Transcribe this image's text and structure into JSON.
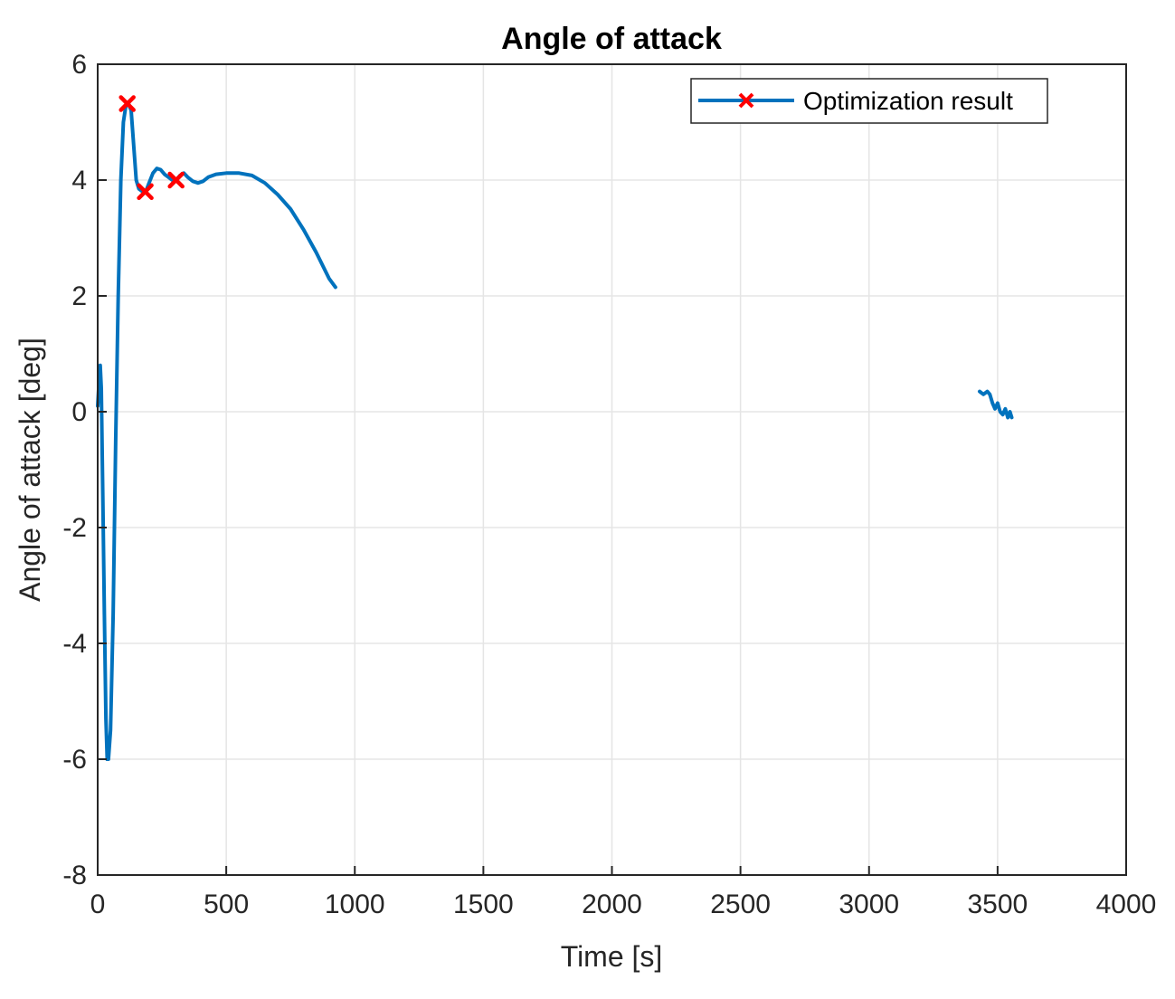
{
  "chart_data": {
    "type": "line",
    "title": "Angle of attack",
    "xlabel": "Time [s]",
    "ylabel": "Angle of attack [deg]",
    "xlim": [
      0,
      4000
    ],
    "ylim": [
      -8,
      6
    ],
    "xticks": [
      0,
      500,
      1000,
      1500,
      2000,
      2500,
      3000,
      3500,
      4000
    ],
    "yticks": [
      -8,
      -6,
      -4,
      -2,
      0,
      2,
      4,
      6
    ],
    "xtick_labels": [
      "0",
      "500",
      "1000",
      "1500",
      "2000",
      "2500",
      "3000",
      "3500",
      "4000"
    ],
    "ytick_labels": [
      "-8",
      "-6",
      "-4",
      "-2",
      "0",
      "2",
      "4",
      "6"
    ],
    "grid": true,
    "legend_position": "top-right",
    "colors": {
      "line": "#0072BD",
      "marker": "#FF0000",
      "grid": "#E5E5E5",
      "axes": "#262626"
    },
    "series": [
      {
        "name": "Optimization result",
        "segments": [
          [
            [
              0,
              0.1
            ],
            [
              5,
              0.5
            ],
            [
              10,
              0.8
            ],
            [
              14,
              0.4
            ],
            [
              20,
              -1.5
            ],
            [
              26,
              -3.5
            ],
            [
              32,
              -5.3
            ],
            [
              37,
              -6.0
            ],
            [
              42,
              -6.0
            ],
            [
              50,
              -5.5
            ],
            [
              60,
              -3.5
            ],
            [
              70,
              -0.5
            ],
            [
              80,
              2.0
            ],
            [
              90,
              4.0
            ],
            [
              100,
              5.0
            ],
            [
              110,
              5.3
            ],
            [
              120,
              5.32
            ],
            [
              130,
              5.2
            ],
            [
              140,
              4.6
            ],
            [
              150,
              4.0
            ],
            [
              160,
              3.85
            ],
            [
              175,
              3.8
            ],
            [
              185,
              3.78
            ],
            [
              200,
              3.95
            ],
            [
              215,
              4.12
            ],
            [
              230,
              4.2
            ],
            [
              245,
              4.18
            ],
            [
              260,
              4.1
            ],
            [
              275,
              4.05
            ],
            [
              290,
              4.0
            ],
            [
              305,
              4.0
            ],
            [
              320,
              4.08
            ],
            [
              335,
              4.12
            ],
            [
              350,
              4.05
            ],
            [
              370,
              3.98
            ],
            [
              390,
              3.95
            ],
            [
              410,
              3.98
            ],
            [
              430,
              4.05
            ],
            [
              460,
              4.1
            ],
            [
              500,
              4.12
            ],
            [
              550,
              4.12
            ],
            [
              600,
              4.08
            ],
            [
              650,
              3.95
            ],
            [
              700,
              3.75
            ],
            [
              750,
              3.5
            ],
            [
              800,
              3.15
            ],
            [
              850,
              2.75
            ],
            [
              900,
              2.3
            ],
            [
              925,
              2.15
            ]
          ],
          [
            [
              3430,
              0.35
            ],
            [
              3445,
              0.3
            ],
            [
              3460,
              0.35
            ],
            [
              3470,
              0.3
            ],
            [
              3480,
              0.15
            ],
            [
              3490,
              0.05
            ],
            [
              3500,
              0.15
            ],
            [
              3510,
              0.0
            ],
            [
              3520,
              -0.05
            ],
            [
              3530,
              0.05
            ],
            [
              3540,
              -0.1
            ],
            [
              3548,
              0.0
            ],
            [
              3555,
              -0.1
            ]
          ]
        ],
        "markers": [
          [
            115,
            5.32
          ],
          [
            185,
            3.8
          ],
          [
            305,
            4.0
          ]
        ]
      }
    ]
  }
}
